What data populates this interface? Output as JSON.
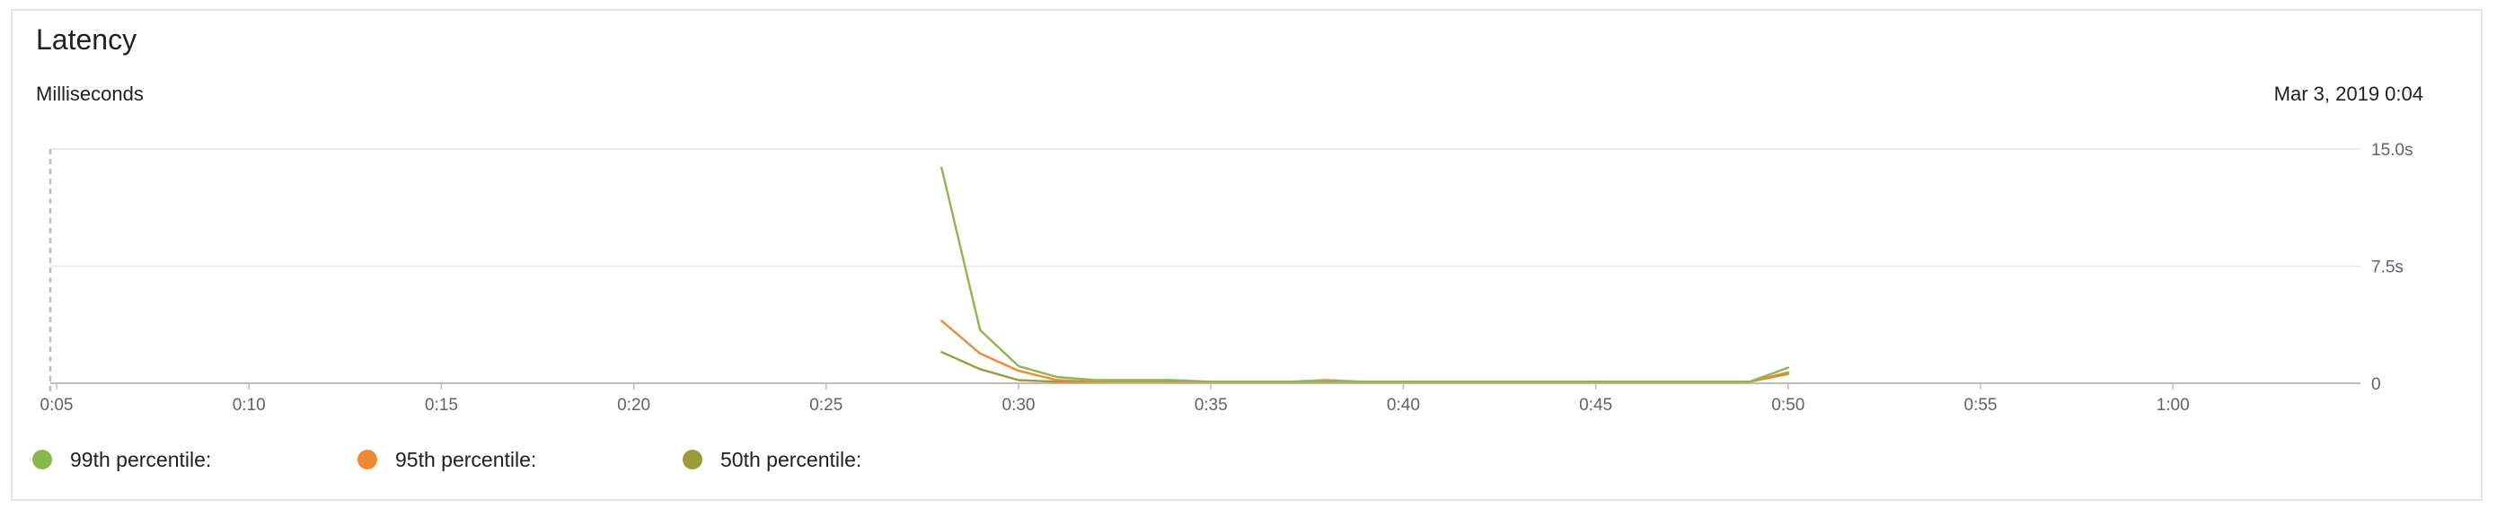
{
  "widget": {
    "title": "Latency",
    "unit_label": "Milliseconds",
    "timestamp": "Mar 3, 2019 0:04"
  },
  "colors": {
    "p99": "#8bb84a",
    "p95": "#ee8a33",
    "p50": "#9a9c3a",
    "grid": "#e6e6e6",
    "baseline": "#bdbdbd",
    "cursor": "#bdbdbd"
  },
  "chart_data": {
    "type": "line",
    "x_ticks": [
      "0:05",
      "0:10",
      "0:15",
      "0:20",
      "0:25",
      "0:30",
      "0:35",
      "0:40",
      "0:45",
      "0:50",
      "0:55",
      "1:00"
    ],
    "x_unit": "minutes",
    "xlim": [
      5,
      65
    ],
    "y_ticks": [
      "0",
      "7.5s",
      "15.0s"
    ],
    "ylim": [
      0,
      15
    ],
    "y_unit": "seconds",
    "grid": true,
    "legend_position": "bottom-left",
    "series": [
      {
        "name": "99th percentile:",
        "color_key": "p99",
        "x": [
          28,
          29,
          30,
          31,
          32,
          33,
          34,
          35,
          36,
          37,
          38,
          39,
          40,
          41,
          42,
          43,
          44,
          45,
          46,
          47,
          48,
          49,
          50
        ],
        "values": [
          13.8,
          3.4,
          1.1,
          0.4,
          0.2,
          0.2,
          0.2,
          0.1,
          0.1,
          0.1,
          0.1,
          0.1,
          0.1,
          0.1,
          0.1,
          0.1,
          0.1,
          0.1,
          0.1,
          0.1,
          0.1,
          0.1,
          1.0
        ]
      },
      {
        "name": "95th percentile:",
        "color_key": "p95",
        "x": [
          28,
          29,
          30,
          31,
          32,
          33,
          34,
          35,
          36,
          37,
          38,
          39,
          40,
          41,
          42,
          43,
          44,
          45,
          46,
          47,
          48,
          49,
          50
        ],
        "values": [
          4.0,
          1.9,
          0.8,
          0.2,
          0.1,
          0.1,
          0.1,
          0.1,
          0.1,
          0.1,
          0.2,
          0.1,
          0.1,
          0.1,
          0.1,
          0.1,
          0.1,
          0.1,
          0.1,
          0.1,
          0.1,
          0.1,
          0.7
        ]
      },
      {
        "name": "50th percentile:",
        "color_key": "p50",
        "x": [
          28,
          29,
          30,
          31,
          32,
          33,
          34,
          35,
          36,
          37,
          38,
          39,
          40,
          41,
          42,
          43,
          44,
          45,
          46,
          47,
          48,
          49,
          50
        ],
        "values": [
          2.0,
          0.9,
          0.2,
          0.1,
          0.1,
          0.1,
          0.1,
          0.1,
          0.1,
          0.1,
          0.1,
          0.1,
          0.1,
          0.1,
          0.1,
          0.1,
          0.1,
          0.1,
          0.1,
          0.1,
          0.1,
          0.1,
          0.6
        ]
      }
    ]
  }
}
